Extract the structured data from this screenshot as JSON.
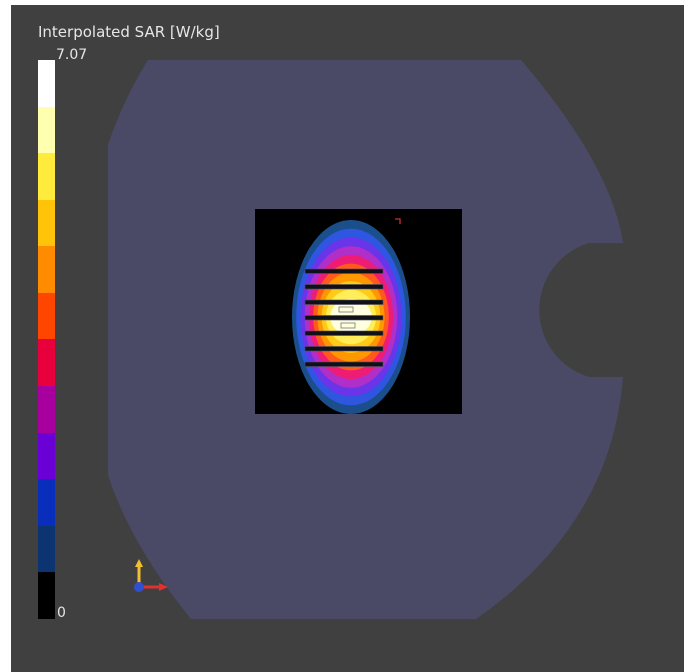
{
  "legend": {
    "title": "Interpolated SAR [W/kg]",
    "max_label": "7.07",
    "min_label": "0",
    "colors_top_to_bottom": [
      "#ffffff",
      "#ffffb0",
      "#ffeb3c",
      "#ffc40a",
      "#ff8c00",
      "#ff4600",
      "#e8003c",
      "#a8009e",
      "#6a00d6",
      "#0a2ebc",
      "#0b3470",
      "#000000"
    ]
  },
  "scene": {
    "viewport_background": "#404040",
    "domain_color": "#4a4a66",
    "cut_plane_background": "#000000",
    "sar_contour_colors_outer_to_inner": [
      "#1b4f8c",
      "#2e56e0",
      "#6a34e8",
      "#b02fc8",
      "#ee1c74",
      "#ff5a1e",
      "#ff9800",
      "#ffcb18",
      "#ffee58",
      "#ffffe0"
    ],
    "coil_rung_count": 7
  },
  "axes_triad": {
    "x_color": "#e03030",
    "y_color": "#f0c030",
    "z_color": "#3050d0"
  }
}
